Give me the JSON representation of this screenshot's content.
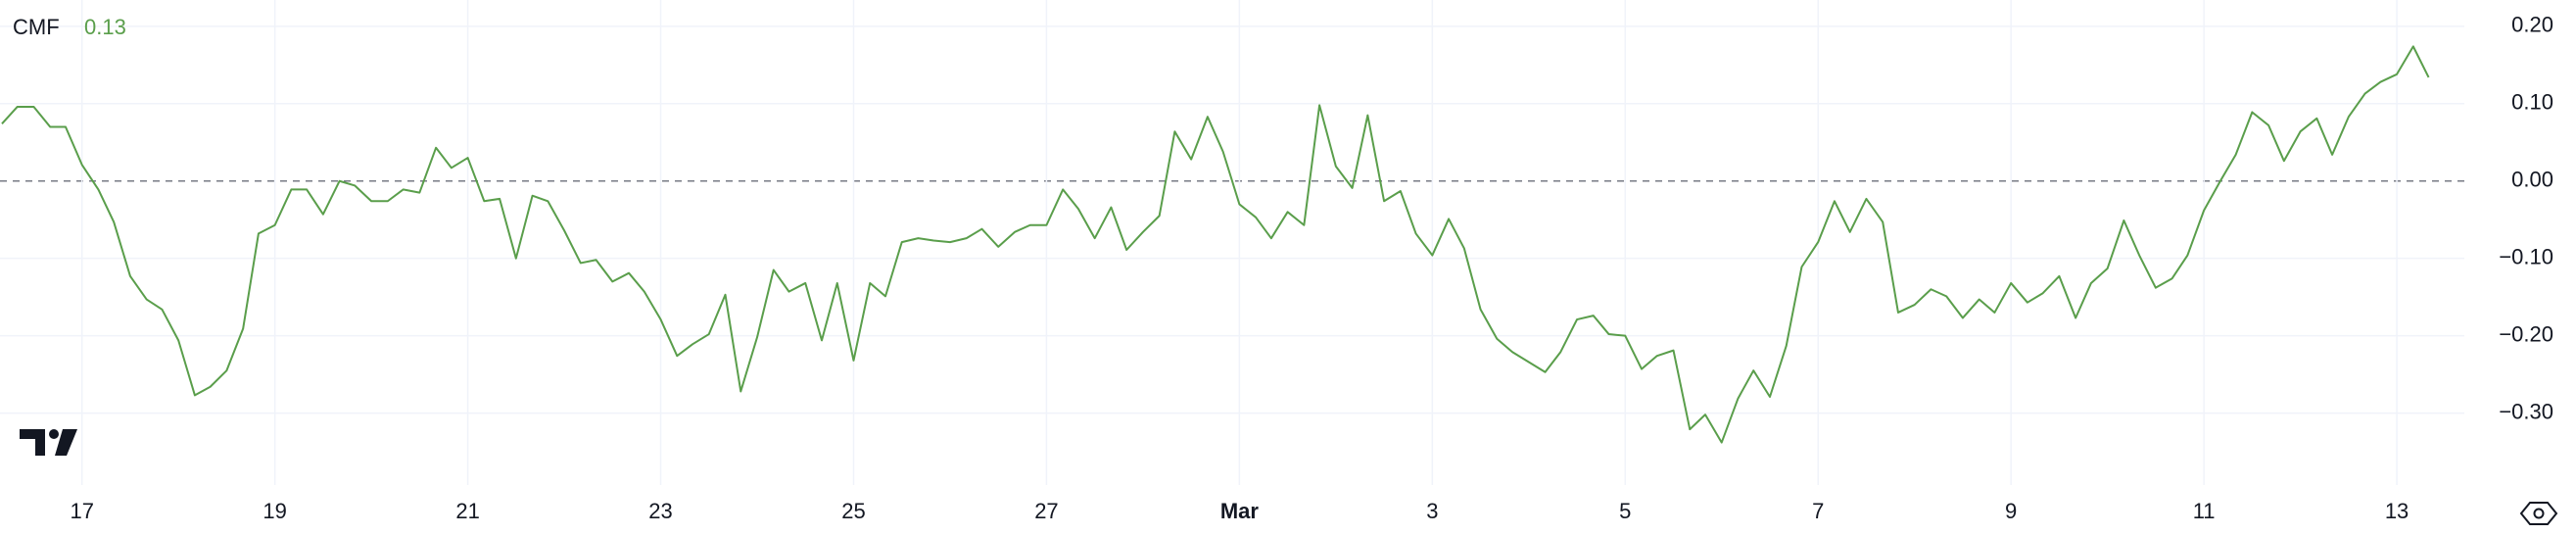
{
  "chart_data": {
    "type": "line",
    "indicator_label": "CMF",
    "last_value_label": "0.13",
    "x": [
      16.17,
      16.33,
      16.5,
      16.67,
      16.83,
      17,
      17.17,
      17.33,
      17.5,
      17.67,
      17.83,
      18,
      18.17,
      18.33,
      18.5,
      18.67,
      18.83,
      19,
      19.17,
      19.33,
      19.5,
      19.67,
      19.83,
      20,
      20.17,
      20.33,
      20.5,
      20.67,
      20.83,
      21,
      21.17,
      21.33,
      21.5,
      21.67,
      21.83,
      22,
      22.17,
      22.33,
      22.5,
      22.67,
      22.83,
      23,
      23.17,
      23.33,
      23.5,
      23.67,
      23.83,
      24,
      24.17,
      24.33,
      24.5,
      24.67,
      24.83,
      25,
      25.17,
      25.33,
      25.5,
      25.67,
      25.83,
      26,
      26.17,
      26.33,
      26.5,
      26.67,
      26.83,
      27,
      27.17,
      27.33,
      27.5,
      27.67,
      27.83,
      28,
      28.17,
      28.33,
      28.5,
      28.67,
      28.83,
      29,
      29.17,
      29.33,
      29.5,
      29.67,
      29.83,
      30,
      30.17,
      30.33,
      30.5,
      30.67,
      30.83,
      31,
      31.17,
      31.33,
      31.5,
      31.67,
      31.83,
      32,
      32.17,
      32.33,
      32.5,
      32.67,
      32.83,
      33,
      33.17,
      33.33,
      33.5,
      33.67,
      33.83,
      34,
      34.17,
      34.33,
      34.5,
      34.67,
      34.83,
      35,
      35.17,
      35.33,
      35.5,
      35.67,
      35.83,
      36,
      36.17,
      36.33,
      36.5,
      36.67,
      36.83,
      37,
      37.17,
      37.33,
      37.5,
      37.67,
      37.83,
      38,
      38.17,
      38.33,
      38.5,
      38.67,
      38.83,
      39,
      39.17,
      39.33,
      39.5,
      39.67,
      39.83,
      40,
      40.17,
      40.33,
      40.5,
      40.67,
      40.83,
      41,
      41.17,
      41.33
    ],
    "series": [
      {
        "name": "CMF",
        "color": "#5a9e4b",
        "values": [
          0.074,
          0.096,
          0.096,
          0.07,
          0.07,
          0.021,
          -0.011,
          -0.053,
          -0.123,
          -0.153,
          -0.166,
          -0.206,
          -0.277,
          -0.266,
          -0.245,
          -0.191,
          -0.068,
          -0.057,
          -0.011,
          -0.011,
          -0.043,
          0.0,
          -0.006,
          -0.026,
          -0.026,
          -0.011,
          -0.015,
          0.043,
          0.017,
          0.03,
          -0.026,
          -0.023,
          -0.1,
          -0.019,
          -0.026,
          -0.064,
          -0.106,
          -0.102,
          -0.13,
          -0.119,
          -0.143,
          -0.179,
          -0.226,
          -0.211,
          -0.198,
          -0.147,
          -0.272,
          -0.202,
          -0.115,
          -0.143,
          -0.132,
          -0.206,
          -0.132,
          -0.232,
          -0.132,
          -0.149,
          -0.079,
          -0.074,
          -0.077,
          -0.079,
          -0.074,
          -0.062,
          -0.085,
          -0.066,
          -0.057,
          -0.057,
          -0.011,
          -0.036,
          -0.074,
          -0.034,
          -0.089,
          -0.066,
          -0.045,
          0.064,
          0.028,
          0.083,
          0.038,
          -0.03,
          -0.047,
          -0.074,
          -0.04,
          -0.057,
          0.098,
          0.019,
          -0.009,
          0.085,
          -0.026,
          -0.013,
          -0.068,
          -0.096,
          -0.049,
          -0.087,
          -0.166,
          -0.204,
          -0.221,
          -0.234,
          -0.247,
          -0.221,
          -0.179,
          -0.174,
          -0.198,
          -0.2,
          -0.243,
          -0.226,
          -0.219,
          -0.321,
          -0.302,
          -0.338,
          -0.281,
          -0.245,
          -0.279,
          -0.213,
          -0.111,
          -0.079,
          -0.026,
          -0.066,
          -0.023,
          -0.053,
          -0.17,
          -0.16,
          -0.14,
          -0.149,
          -0.177,
          -0.153,
          -0.17,
          -0.132,
          -0.157,
          -0.145,
          -0.123,
          -0.177,
          -0.132,
          -0.113,
          -0.051,
          -0.096,
          -0.138,
          -0.126,
          -0.096,
          -0.038,
          0.0,
          0.034,
          0.089,
          0.072,
          0.026,
          0.064,
          0.081,
          0.034,
          0.083,
          0.113,
          0.128,
          0.138,
          0.174,
          0.134
        ]
      }
    ],
    "xlim": [
      16.15,
      41.7
    ],
    "xticks": [
      17,
      19,
      21,
      23,
      25,
      27,
      {
        "value": 29,
        "label": "Mar"
      },
      {
        "value": 31,
        "label": "3"
      },
      {
        "value": 33,
        "label": "5"
      },
      {
        "value": 35,
        "label": "7"
      },
      {
        "value": 37,
        "label": "9"
      },
      {
        "value": 39,
        "label": "11"
      },
      {
        "value": 41,
        "label": "13"
      }
    ],
    "ylim": [
      -0.393,
      0.234
    ],
    "yticks": [
      {
        "value": 0.2,
        "label": "0.20"
      },
      {
        "value": 0.1,
        "label": "0.10"
      },
      {
        "value": 0,
        "label": "0.00"
      },
      {
        "value": -0.1,
        "label": "−0.10"
      },
      {
        "value": -0.2,
        "label": "−0.20"
      },
      {
        "value": -0.3,
        "label": "−0.30"
      }
    ],
    "grid": true
  }
}
